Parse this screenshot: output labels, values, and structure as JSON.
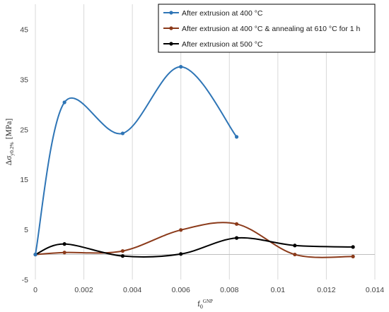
{
  "chart_data": {
    "type": "line",
    "xlabel": "f",
    "xlabel_sub": "0",
    "xlabel_sup": "GNP",
    "ylabel": "Δσ",
    "ylabel_sub": "y0.2%",
    "ylabel_unit": "[MPa]",
    "xlim": [
      0,
      0.014
    ],
    "ylim": [
      -5,
      50
    ],
    "x_ticks": [
      "0",
      "0.002",
      "0.004",
      "0.006",
      "0.008",
      "0.01",
      "0.012",
      "0.014"
    ],
    "y_ticks": [
      "-5",
      "5",
      "15",
      "25",
      "35",
      "45"
    ],
    "grid": "vertical",
    "legend_position": "top-right",
    "series": [
      {
        "name": "After extrusion at 400 °C",
        "color": "#2e75b6",
        "x": [
          0,
          0.0012,
          0.0036,
          0.006,
          0.0083
        ],
        "y": [
          0,
          30.4,
          24.2,
          37.5,
          23.5
        ]
      },
      {
        "name": "After extrusion at 400 °C & annealing at 610 °C for 1 h",
        "color": "#8b3a1a",
        "x": [
          0,
          0.0012,
          0.0036,
          0.006,
          0.0083,
          0.0107,
          0.0131
        ],
        "y": [
          0,
          0.4,
          0.7,
          4.9,
          6.1,
          0,
          -0.4
        ]
      },
      {
        "name": "After extrusion at 500 °C",
        "color": "#000000",
        "x": [
          0,
          0.0012,
          0.0036,
          0.006,
          0.0083,
          0.0107,
          0.0131
        ],
        "y": [
          0,
          2.1,
          -0.3,
          0.1,
          3.3,
          1.8,
          1.5
        ]
      }
    ]
  }
}
